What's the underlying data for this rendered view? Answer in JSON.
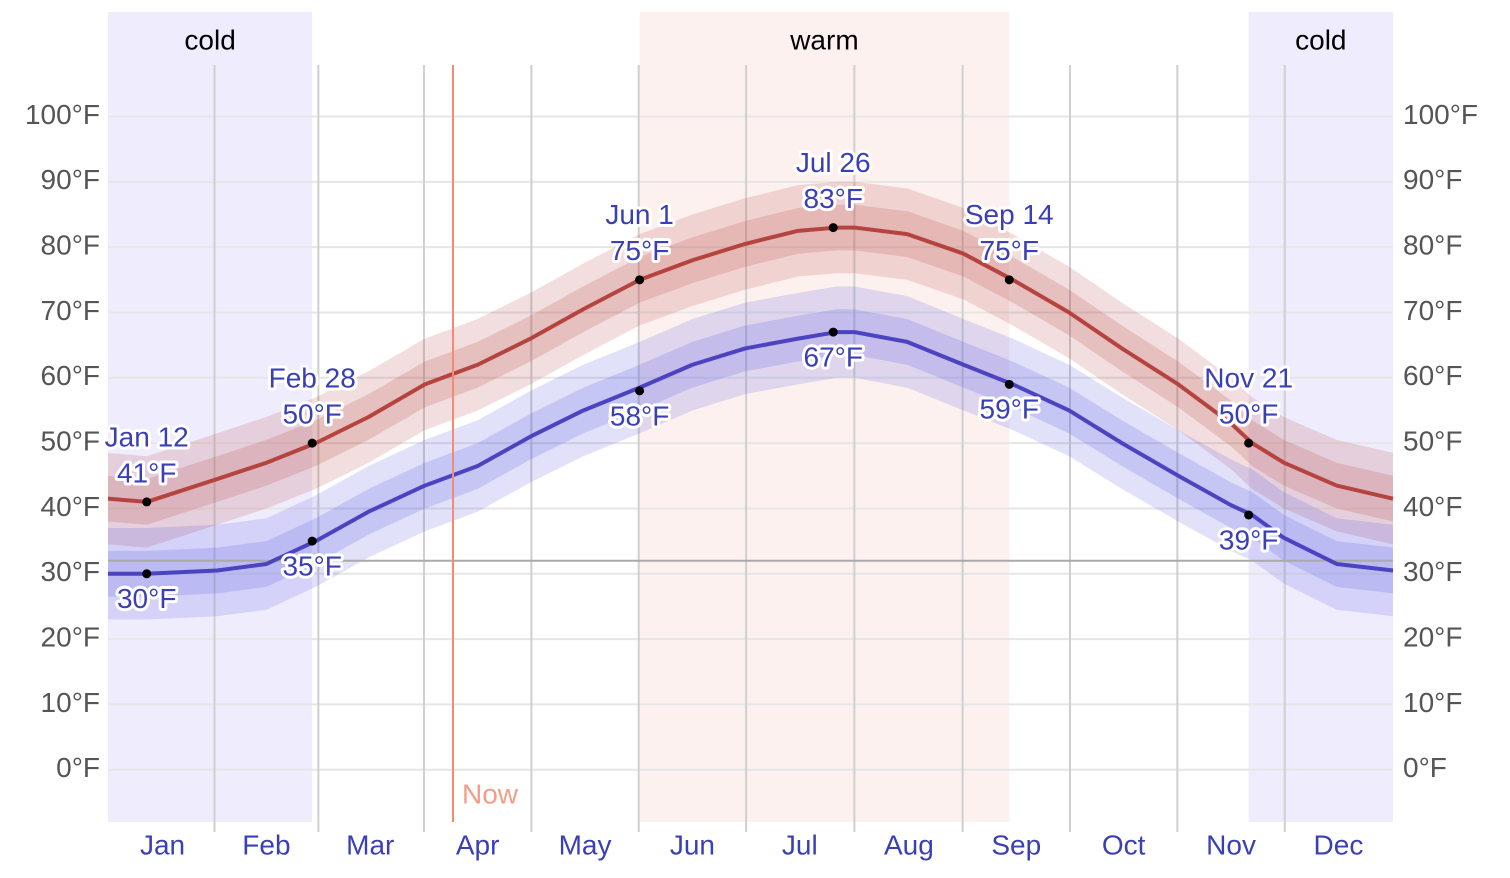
{
  "chart_data": {
    "type": "line",
    "x": [
      0,
      11,
      31,
      45,
      59,
      74,
      90,
      105,
      120,
      135,
      151,
      166,
      181,
      196,
      207,
      212,
      227,
      243,
      257,
      273,
      288,
      304,
      319,
      325,
      334,
      349,
      365
    ],
    "xlim": [
      0,
      365
    ],
    "xticks": [
      {
        "value": 15.5,
        "label": "Jan"
      },
      {
        "value": 45,
        "label": "Feb"
      },
      {
        "value": 74.5,
        "label": "Mar"
      },
      {
        "value": 105,
        "label": "Apr"
      },
      {
        "value": 135.5,
        "label": "May"
      },
      {
        "value": 166,
        "label": "Jun"
      },
      {
        "value": 196.5,
        "label": "Jul"
      },
      {
        "value": 227.5,
        "label": "Aug"
      },
      {
        "value": 258,
        "label": "Sep"
      },
      {
        "value": 288.5,
        "label": "Oct"
      },
      {
        "value": 319,
        "label": "Nov"
      },
      {
        "value": 349.5,
        "label": "Dec"
      }
    ],
    "ylim": [
      -8,
      116
    ],
    "yticks": [
      {
        "value": 0,
        "label": "0°F"
      },
      {
        "value": 10,
        "label": "10°F"
      },
      {
        "value": 20,
        "label": "20°F"
      },
      {
        "value": 30,
        "label": "30°F"
      },
      {
        "value": 40,
        "label": "40°F"
      },
      {
        "value": 50,
        "label": "50°F"
      },
      {
        "value": 60,
        "label": "60°F"
      },
      {
        "value": 70,
        "label": "70°F"
      },
      {
        "value": 80,
        "label": "80°F"
      },
      {
        "value": 90,
        "label": "90°F"
      },
      {
        "value": 100,
        "label": "100°F"
      }
    ],
    "grid": true,
    "seasons": [
      {
        "label": "cold",
        "start": 0,
        "end": 58,
        "color": "#efedfd"
      },
      {
        "label": "warm",
        "start": 151,
        "end": 256,
        "color": "#fdf1ef"
      },
      {
        "label": "cold",
        "start": 324,
        "end": 365,
        "color": "#efedfd"
      }
    ],
    "now": {
      "label": "Now",
      "x": 98,
      "color": "#f28b74"
    },
    "reference_line": {
      "value": 32,
      "color": "#aaaaaa"
    },
    "bands": [
      {
        "color": "rgba(185,74,72,0.18)",
        "upper": [
          48.5,
          48,
          51.5,
          54,
          57,
          61,
          66,
          69,
          73,
          77.5,
          82,
          85,
          87.5,
          89.5,
          90,
          90,
          89,
          86,
          82,
          77,
          71.5,
          66,
          60,
          57,
          54,
          50.5,
          48.5
        ],
        "lower": [
          34.5,
          34,
          37.5,
          40,
          43,
          47,
          52,
          55,
          59,
          63.5,
          68,
          71,
          73.5,
          75.5,
          76,
          76,
          75,
          72,
          68,
          63,
          57.5,
          52,
          46,
          43,
          40,
          36.5,
          34.5
        ]
      },
      {
        "color": "rgba(185,74,72,0.2)",
        "upper": [
          45,
          44.5,
          48,
          50.5,
          53.5,
          57.5,
          62.5,
          65.5,
          69.5,
          74,
          78.5,
          81.5,
          84,
          86,
          86.5,
          86.5,
          85.5,
          82.5,
          78.5,
          73.5,
          68,
          62.5,
          56.5,
          53.5,
          50.5,
          47,
          45
        ],
        "lower": [
          38,
          37.5,
          41,
          43.5,
          46.5,
          50.5,
          55.5,
          58.5,
          62.5,
          67,
          71.5,
          74.5,
          77,
          79,
          79.5,
          79.5,
          78.5,
          75.5,
          71.5,
          66.5,
          61,
          55.5,
          49.5,
          46.5,
          43.5,
          40,
          38
        ]
      },
      {
        "color": "rgba(90,90,225,0.18)",
        "upper": [
          37,
          37,
          37.5,
          38.5,
          42,
          46.5,
          50.5,
          53.5,
          58,
          62,
          65.5,
          69,
          71.5,
          73,
          74,
          74,
          72.5,
          69,
          66,
          62,
          57,
          52,
          47.5,
          46,
          42.5,
          38.5,
          37.5
        ],
        "lower": [
          23,
          23,
          23.5,
          24.5,
          28,
          32.5,
          36.5,
          39.5,
          44,
          48,
          51.5,
          55,
          57.5,
          59,
          60,
          60,
          58.5,
          55,
          52,
          48,
          43,
          38,
          33.5,
          32,
          28.5,
          24.5,
          23.5
        ]
      },
      {
        "color": "rgba(90,90,225,0.2)",
        "upper": [
          33.5,
          33.5,
          34,
          35,
          38.5,
          43,
          47,
          50,
          54.5,
          58.5,
          62,
          65.5,
          68,
          69.5,
          70.5,
          70.5,
          69,
          65.5,
          62.5,
          58.5,
          53.5,
          48.5,
          44,
          42.5,
          39,
          35,
          34
        ],
        "lower": [
          26.5,
          26.5,
          27,
          28,
          31.5,
          36,
          40,
          43,
          47.5,
          51.5,
          55,
          58.5,
          61,
          62.5,
          63.5,
          63.5,
          62,
          58.5,
          55.5,
          51.5,
          46.5,
          41.5,
          37,
          35.5,
          32,
          28,
          27
        ]
      }
    ],
    "series": [
      {
        "color": "#b5433f",
        "values": [
          41.5,
          41,
          44.5,
          47,
          50,
          54,
          59,
          62,
          66,
          70.5,
          75,
          78,
          80.5,
          82.5,
          83,
          83,
          82,
          79,
          75,
          70,
          64.5,
          59,
          53,
          50,
          47,
          43.5,
          41.5
        ]
      },
      {
        "color": "#4b43c0",
        "values": [
          30,
          30,
          30.5,
          31.5,
          35,
          39.5,
          43.5,
          46.5,
          51,
          55,
          58.5,
          62,
          64.5,
          66,
          67,
          67,
          65.5,
          62,
          59,
          55,
          50,
          45,
          40.5,
          39,
          35.5,
          31.5,
          30.5
        ]
      }
    ],
    "annotations": [
      {
        "date": "Jan 12",
        "x": 11,
        "high": 41,
        "high_label": "41°F",
        "low": 30,
        "low_label": "30°F"
      },
      {
        "date": "Feb 28",
        "x": 58,
        "high": 50,
        "high_label": "50°F",
        "low": 35,
        "low_label": "35°F"
      },
      {
        "date": "Jun 1",
        "x": 151,
        "high": 75,
        "high_label": "75°F",
        "low": 58,
        "low_label": "58°F"
      },
      {
        "date": "Jul 26",
        "x": 206,
        "high": 83,
        "high_label": "83°F",
        "low": 67,
        "low_label": "67°F"
      },
      {
        "date": "Sep 14",
        "x": 256,
        "high": 75,
        "high_label": "75°F",
        "low": 59,
        "low_label": "59°F"
      },
      {
        "date": "Nov 21",
        "x": 324,
        "high": 50,
        "high_label": "50°F",
        "low": 39,
        "low_label": "39°F"
      }
    ]
  }
}
